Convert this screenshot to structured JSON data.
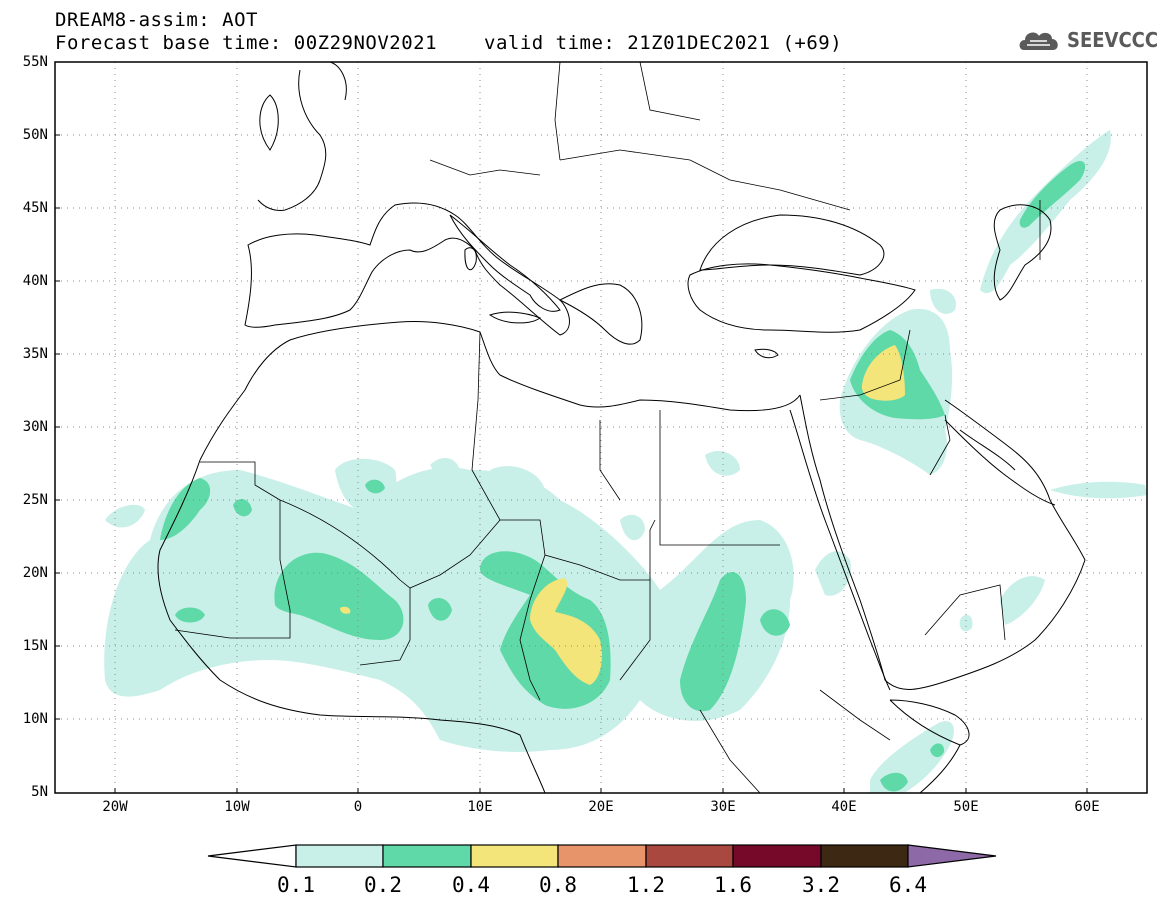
{
  "header": {
    "title": "DREAM8-assim: AOT",
    "base_time": "Forecast base time: 00Z29NOV2021",
    "valid_time": "valid time: 21Z01DEC2021 (+69)"
  },
  "logo": {
    "text": "SEEVCCC",
    "icon": "cloud-icon"
  },
  "map": {
    "lat_labels": [
      "55N",
      "50N",
      "45N",
      "40N",
      "35N",
      "30N",
      "25N",
      "20N",
      "15N",
      "10N",
      "5N"
    ],
    "lon_labels": [
      "20W",
      "10W",
      "0",
      "10E",
      "20E",
      "30E",
      "40E",
      "50E",
      "60E"
    ],
    "lat_range": [
      5,
      55
    ],
    "lon_range": [
      -25,
      65
    ],
    "grid": true
  },
  "colorbar": {
    "labels": [
      "0.1",
      "0.2",
      "0.4",
      "0.8",
      "1.2",
      "1.6",
      "3.2",
      "6.4"
    ],
    "colors": [
      "#ffffff",
      "#c8f0e8",
      "#5fd9a7",
      "#f3e57a",
      "#e8946a",
      "#a8483e",
      "#76082a",
      "#3d2814",
      "#8e69a8"
    ]
  }
}
